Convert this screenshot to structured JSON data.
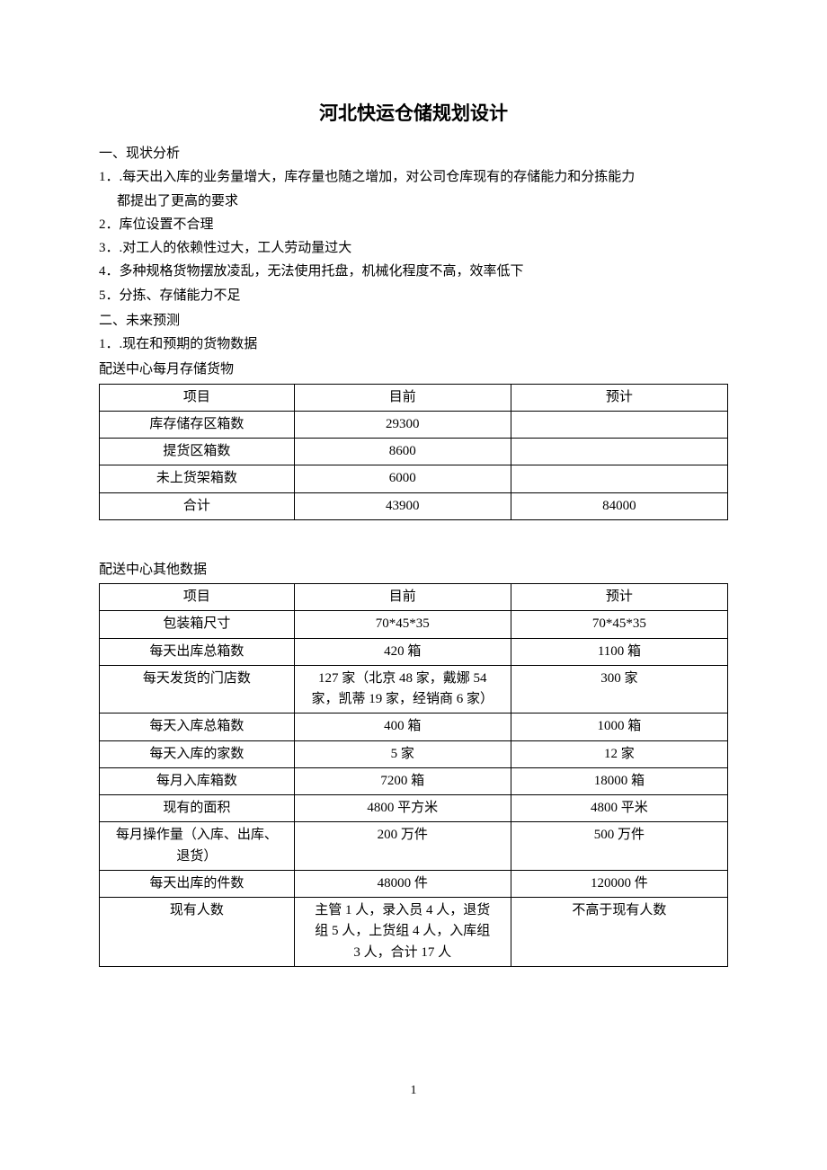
{
  "title": "河北快运仓储规划设计",
  "section1": {
    "heading": "一、现状分析",
    "items": [
      "1．.每天出入库的业务量增大，库存量也随之增加，对公司仓库现有的存储能力和分拣能力",
      "都提出了更高的要求",
      "2．库位设置不合理",
      "3．.对工人的依赖性过大，工人劳动量过大",
      "4．多种规格货物摆放凌乱，无法使用托盘，机械化程度不高，效率低下",
      "5．分拣、存储能力不足"
    ]
  },
  "section2": {
    "heading": "二、未来预测",
    "item1": "1．.现在和预期的货物数据"
  },
  "table1": {
    "caption": "配送中心每月存储货物",
    "columns": [
      "项目",
      "目前",
      "预计"
    ],
    "rows": [
      [
        "库存储存区箱数",
        "29300",
        ""
      ],
      [
        "提货区箱数",
        "8600",
        ""
      ],
      [
        "未上货架箱数",
        "6000",
        ""
      ],
      [
        "合计",
        "43900",
        "84000"
      ]
    ]
  },
  "table2": {
    "caption": "配送中心其他数据",
    "columns": [
      "项目",
      "目前",
      "预计"
    ],
    "rows": [
      [
        "包装箱尺寸",
        "70*45*35",
        "70*45*35"
      ],
      [
        "每天出库总箱数",
        "420 箱",
        "1100 箱"
      ],
      [
        "每天发货的门店数",
        "127 家（北京 48 家，戴娜 54\n家，凯蒂 19 家，经销商 6 家）",
        "300 家"
      ],
      [
        "每天入库总箱数",
        "400 箱",
        "1000 箱"
      ],
      [
        "每天入库的家数",
        "5 家",
        "12 家"
      ],
      [
        "每月入库箱数",
        "7200 箱",
        "18000 箱"
      ],
      [
        "现有的面积",
        "4800 平方米",
        "4800 平米"
      ],
      [
        "每月操作量（入库、出库、\n退货）",
        "200 万件",
        "500 万件"
      ],
      [
        "每天出库的件数",
        "48000 件",
        "120000 件"
      ],
      [
        "现有人数",
        "主管 1 人，录入员 4 人，退货\n组 5 人，上货组 4 人，入库组\n3 人，合计 17 人",
        "不高于现有人数"
      ]
    ]
  },
  "page_number": "1"
}
